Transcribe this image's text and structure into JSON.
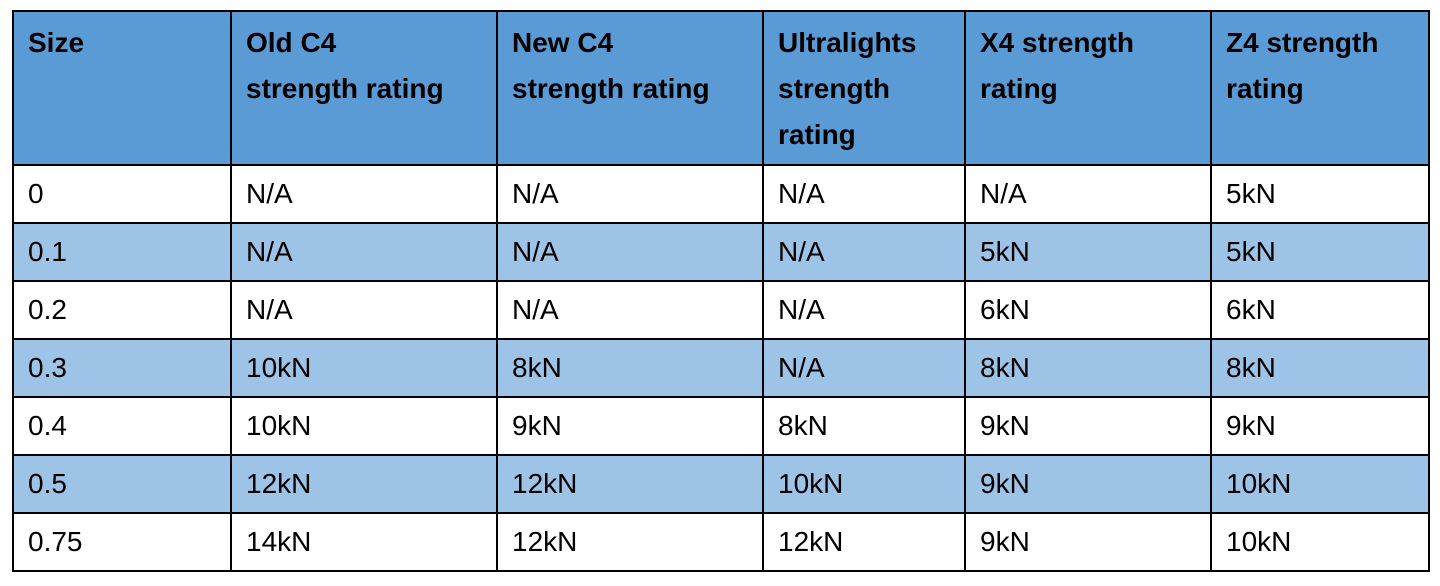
{
  "table": {
    "header": [
      "Size",
      "Old C4 strength rating",
      "New C4 strength rating",
      "Ultralights strength rating",
      "X4 strength rating",
      "Z4 strength rating"
    ],
    "rows": [
      [
        "0",
        "N/A",
        "N/A",
        "N/A",
        "N/A",
        "5kN"
      ],
      [
        "0.1",
        "N/A",
        "N/A",
        "N/A",
        "5kN",
        "5kN"
      ],
      [
        "0.2",
        "N/A",
        "N/A",
        "N/A",
        "6kN",
        "6kN"
      ],
      [
        "0.3",
        "10kN",
        "8kN",
        "N/A",
        "8kN",
        "8kN"
      ],
      [
        "0.4",
        "10kN",
        "9kN",
        "8kN",
        "9kN",
        "9kN"
      ],
      [
        "0.5",
        "12kN",
        "12kN",
        "10kN",
        "9kN",
        "10kN"
      ],
      [
        "0.75",
        "14kN",
        "12kN",
        "12kN",
        "9kN",
        "10kN"
      ]
    ]
  }
}
